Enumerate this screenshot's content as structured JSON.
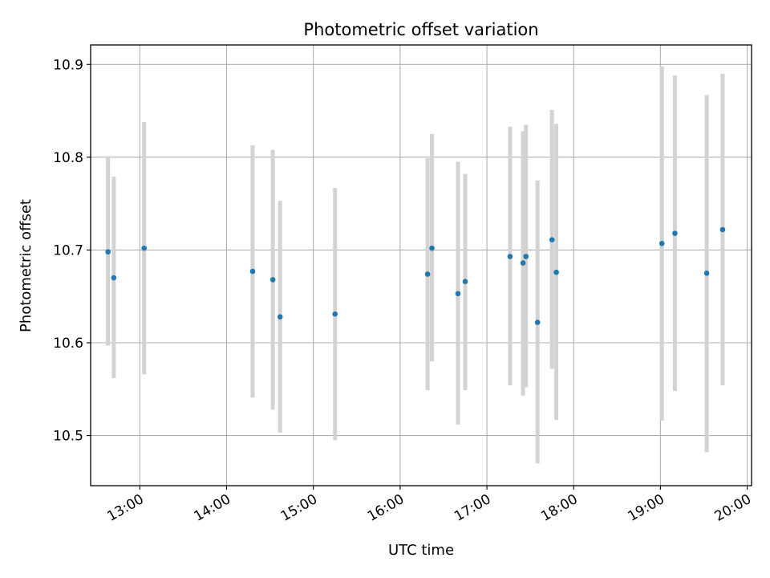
{
  "chart_data": {
    "type": "scatter",
    "title": "Photometric offset variation",
    "xlabel": "UTC time",
    "ylabel": "Photometric offset",
    "xlim": [
      "12:26",
      "20:03"
    ],
    "ylim": [
      10.446,
      10.921
    ],
    "x_ticks": [
      "13:00",
      "14:00",
      "15:00",
      "16:00",
      "17:00",
      "18:00",
      "19:00",
      "20:00"
    ],
    "y_ticks": [
      10.5,
      10.6,
      10.7,
      10.8,
      10.9
    ],
    "y_tick_labels": [
      "10.5",
      "10.6",
      "10.7",
      "10.8",
      "10.9"
    ],
    "grid": true,
    "error_bar_color": "#d3d3d3",
    "point_color": "#1f77b4",
    "points": [
      {
        "x": "12:38",
        "y": 10.698,
        "err_low": 10.597,
        "err_high": 10.8
      },
      {
        "x": "12:42",
        "y": 10.67,
        "err_low": 10.562,
        "err_high": 10.779
      },
      {
        "x": "13:03",
        "y": 10.702,
        "err_low": 10.566,
        "err_high": 10.838
      },
      {
        "x": "14:18",
        "y": 10.677,
        "err_low": 10.541,
        "err_high": 10.813
      },
      {
        "x": "14:32",
        "y": 10.668,
        "err_low": 10.528,
        "err_high": 10.808
      },
      {
        "x": "14:37",
        "y": 10.628,
        "err_low": 10.503,
        "err_high": 10.753
      },
      {
        "x": "15:15",
        "y": 10.631,
        "err_low": 10.495,
        "err_high": 10.767
      },
      {
        "x": "16:19",
        "y": 10.674,
        "err_low": 10.549,
        "err_high": 10.799
      },
      {
        "x": "16:22",
        "y": 10.702,
        "err_low": 10.58,
        "err_high": 10.825
      },
      {
        "x": "16:40",
        "y": 10.653,
        "err_low": 10.512,
        "err_high": 10.795
      },
      {
        "x": "16:45",
        "y": 10.666,
        "err_low": 10.549,
        "err_high": 10.782
      },
      {
        "x": "17:16",
        "y": 10.693,
        "err_low": 10.554,
        "err_high": 10.833
      },
      {
        "x": "17:25",
        "y": 10.686,
        "err_low": 10.543,
        "err_high": 10.828
      },
      {
        "x": "17:27",
        "y": 10.693,
        "err_low": 10.552,
        "err_high": 10.835
      },
      {
        "x": "17:35",
        "y": 10.622,
        "err_low": 10.47,
        "err_high": 10.775
      },
      {
        "x": "17:45",
        "y": 10.711,
        "err_low": 10.572,
        "err_high": 10.851
      },
      {
        "x": "17:48",
        "y": 10.676,
        "err_low": 10.517,
        "err_high": 10.836
      },
      {
        "x": "19:01",
        "y": 10.707,
        "err_low": 10.516,
        "err_high": 10.898
      },
      {
        "x": "19:10",
        "y": 10.718,
        "err_low": 10.548,
        "err_high": 10.888
      },
      {
        "x": "19:32",
        "y": 10.675,
        "err_low": 10.482,
        "err_high": 10.867
      },
      {
        "x": "19:43",
        "y": 10.722,
        "err_low": 10.554,
        "err_high": 10.89
      }
    ]
  }
}
